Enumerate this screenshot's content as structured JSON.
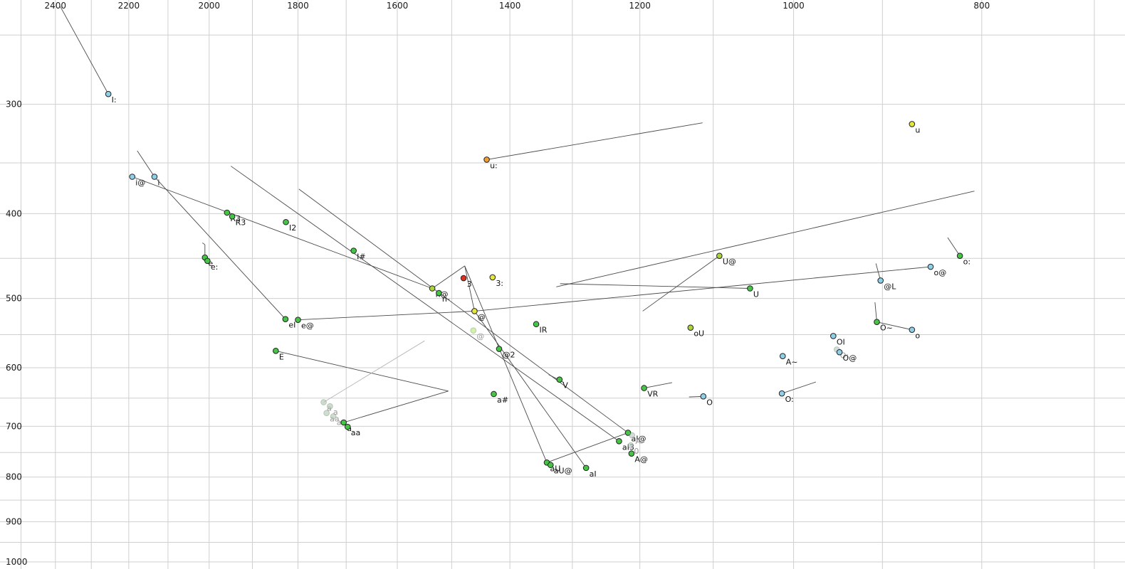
{
  "chart_data": {
    "type": "scatter",
    "title": "",
    "xlabel": "",
    "ylabel": "",
    "x_axis": {
      "scale": "log",
      "reversed": true,
      "domain": [
        2563,
        675
      ],
      "tick_labels": [
        2400,
        2200,
        2000,
        1800,
        1600,
        1400,
        1200,
        1000,
        800
      ],
      "gridlines": [
        2500,
        2400,
        2300,
        2200,
        2100,
        2000,
        1900,
        1800,
        1700,
        1600,
        1500,
        1400,
        1300,
        1200,
        1100,
        1000,
        900,
        800,
        700
      ]
    },
    "y_axis": {
      "scale": "log",
      "reversed": false,
      "domain": [
        228,
        1019
      ],
      "tick_labels": [
        300,
        400,
        500,
        600,
        700,
        800,
        900,
        1000
      ],
      "gridlines": [
        250,
        300,
        350,
        400,
        450,
        500,
        550,
        600,
        650,
        700,
        750,
        800,
        850,
        900,
        950,
        1000
      ]
    },
    "style": {
      "grid_color": "#cfcfcf",
      "line_color": "#4a4a4a",
      "faded_line_color": "#b5b5b5",
      "label_color": "#111111",
      "faded_label_color": "#9a9a9a",
      "point_outline": "#222222",
      "green": "#44c544",
      "cyan": "#8fd0e8",
      "yellow": "#e6e63c",
      "yellow_green": "#aad438",
      "orange": "#f0a030",
      "red": "#e03020"
    },
    "points": [
      {
        "f2": 2254,
        "f1": 292,
        "label": "I:",
        "color": "#8fd0e8"
      },
      {
        "f2": 869,
        "f1": 316,
        "label": "u",
        "color": "#e6e63c"
      },
      {
        "f2": 1439,
        "f1": 347,
        "label": "u:",
        "color": "#f0a030"
      },
      {
        "f2": 2191,
        "f1": 363,
        "label": "i@",
        "color": "#8fd0e8"
      },
      {
        "f2": 2134,
        "f1": 363,
        "label": "i",
        "color": "#8fd0e8"
      },
      {
        "f2": 1958,
        "f1": 399,
        "label": "R3",
        "color": "#44c544"
      },
      {
        "f2": 1946,
        "f1": 403,
        "label": "R3",
        "color": "#44c544"
      },
      {
        "f2": 1826,
        "f1": 409,
        "label": "I2",
        "color": "#44c544"
      },
      {
        "f2": 1685,
        "f1": 441,
        "label": "I#",
        "color": "#44c544"
      },
      {
        "f2": 2010,
        "f1": 449,
        "label": "e",
        "color": "#44c544"
      },
      {
        "f2": 2004,
        "f1": 453,
        "label": "e:",
        "color": "#44c544"
      },
      {
        "f2": 1479,
        "f1": 474,
        "label": "3",
        "color": "#e03020"
      },
      {
        "f2": 1429,
        "f1": 473,
        "label": "3:",
        "color": "#e6e63c"
      },
      {
        "f2": 1535,
        "f1": 487,
        "label": "n@",
        "color": "#aad438"
      },
      {
        "f2": 1523,
        "f1": 493,
        "label": "n-",
        "color": "#44c544"
      },
      {
        "f2": 1460,
        "f1": 517,
        "label": "@",
        "color": "#e6e63c"
      },
      {
        "f2": 1462,
        "f1": 544,
        "label": "@",
        "color": "#b2ee66",
        "faded": true
      },
      {
        "f2": 1418,
        "f1": 571,
        "label": "@2",
        "color": "#44c544"
      },
      {
        "f2": 1827,
        "f1": 528,
        "label": "eI",
        "color": "#44c544"
      },
      {
        "f2": 1800,
        "f1": 529,
        "label": "e@",
        "color": "#44c544"
      },
      {
        "f2": 1357,
        "f1": 535,
        "label": "IR",
        "color": "#44c544"
      },
      {
        "f2": 1848,
        "f1": 574,
        "label": "E",
        "color": "#44c544"
      },
      {
        "f2": 1130,
        "f1": 540,
        "label": "oU",
        "color": "#aad438"
      },
      {
        "f2": 1092,
        "f1": 447,
        "label": "U@",
        "color": "#aad438"
      },
      {
        "f2": 1053,
        "f1": 487,
        "label": "U",
        "color": "#44c544"
      },
      {
        "f2": 850,
        "f1": 460,
        "label": "o@",
        "color": "#8fd0e8"
      },
      {
        "f2": 821,
        "f1": 447,
        "label": "o:",
        "color": "#44c544"
      },
      {
        "f2": 902,
        "f1": 477,
        "label": "@L",
        "color": "#8fd0e8"
      },
      {
        "f2": 906,
        "f1": 532,
        "label": "O~",
        "color": "#44c544"
      },
      {
        "f2": 869,
        "f1": 543,
        "label": "o",
        "color": "#8fd0e8"
      },
      {
        "f2": 954,
        "f1": 552,
        "label": "OI",
        "color": "#8fd0e8"
      },
      {
        "f2": 950,
        "f1": 572,
        "label": "O:",
        "color": "#b8c4c4",
        "faded": true
      },
      {
        "f2": 947,
        "f1": 576,
        "label": "O@",
        "color": "#8fd0e8"
      },
      {
        "f2": 1013,
        "f1": 582,
        "label": "A~",
        "color": "#8fd0e8"
      },
      {
        "f2": 1014,
        "f1": 642,
        "label": "O:",
        "color": "#8fd0e8"
      },
      {
        "f2": 1113,
        "f1": 647,
        "label": "O",
        "color": "#8fd0e8"
      },
      {
        "f2": 1194,
        "f1": 633,
        "label": "VR",
        "color": "#44c544"
      },
      {
        "f2": 1320,
        "f1": 619,
        "label": "V",
        "color": "#44c544"
      },
      {
        "f2": 1427,
        "f1": 643,
        "label": "a#",
        "color": "#44c544"
      },
      {
        "f2": 1746,
        "f1": 657,
        "label": "a",
        "color": "#b0c8b0",
        "faded": true
      },
      {
        "f2": 1733,
        "f1": 664,
        "label": "a",
        "color": "#b0c8b0",
        "faded": true
      },
      {
        "f2": 1740,
        "f1": 676,
        "label": "aa",
        "color": "#b0c8b0",
        "faded": true
      },
      {
        "f2": 1726,
        "f1": 682,
        "label": "aa",
        "color": "#b0c8b0",
        "faded": true
      },
      {
        "f2": 1705,
        "f1": 693,
        "label": "a",
        "color": "#44c544"
      },
      {
        "f2": 1697,
        "f1": 701,
        "label": "aa",
        "color": "#44c544"
      },
      {
        "f2": 1217,
        "f1": 712,
        "label": "aI@",
        "color": "#44c544"
      },
      {
        "f2": 1211,
        "f1": 717,
        "label": "A:",
        "color": "#b8c4c4",
        "faded": true
      },
      {
        "f2": 1230,
        "f1": 728,
        "label": "aI3",
        "color": "#44c544"
      },
      {
        "f2": 1213,
        "f1": 736,
        "label": "0",
        "color": "#b8c4c4",
        "faded": true
      },
      {
        "f2": 1212,
        "f1": 752,
        "label": "A@",
        "color": "#44c544"
      },
      {
        "f2": 1340,
        "f1": 770,
        "label": "aU",
        "color": "#44c544"
      },
      {
        "f2": 1334,
        "f1": 775,
        "label": "aU@",
        "color": "#44c544"
      },
      {
        "f2": 1279,
        "f1": 781,
        "label": "aI",
        "color": "#44c544"
      }
    ],
    "segments": [
      [
        2386,
        232,
        2254,
        292
      ],
      [
        2178,
        339,
        2134,
        363
      ],
      [
        2134,
        363,
        1827,
        528
      ],
      [
        2191,
        363,
        1535,
        487
      ],
      [
        1949,
        353,
        1230,
        728
      ],
      [
        1798,
        375,
        1217,
        712
      ],
      [
        1439,
        347,
        1114,
        315
      ],
      [
        1092,
        447,
        1196,
        517
      ],
      [
        1053,
        487,
        1319,
        481
      ],
      [
        1460,
        517,
        850,
        460
      ],
      [
        1325,
        485,
        807,
        377
      ],
      [
        1800,
        529,
        1460,
        517
      ],
      [
        1848,
        574,
        1506,
        638
      ],
      [
        1705,
        693,
        1506,
        638
      ],
      [
        1746,
        657,
        1549,
        559,
        1
      ],
      [
        1340,
        770,
        1217,
        712
      ],
      [
        1535,
        487,
        1477,
        459
      ],
      [
        1477,
        459,
        1460,
        517
      ],
      [
        1477,
        459,
        1340,
        770
      ],
      [
        1460,
        517,
        1279,
        781
      ],
      [
        2010,
        434,
        2010,
        449
      ],
      [
        2016,
        432,
        2010,
        434
      ],
      [
        833,
        426,
        821,
        447
      ],
      [
        908,
        505,
        906,
        532
      ],
      [
        906,
        532,
        869,
        543
      ],
      [
        907,
        456,
        902,
        477
      ],
      [
        1014,
        642,
        974,
        623
      ],
      [
        1132,
        648,
        1113,
        647
      ],
      [
        1194,
        633,
        1155,
        624
      ],
      [
        1337,
        611,
        1313,
        624
      ]
    ]
  }
}
